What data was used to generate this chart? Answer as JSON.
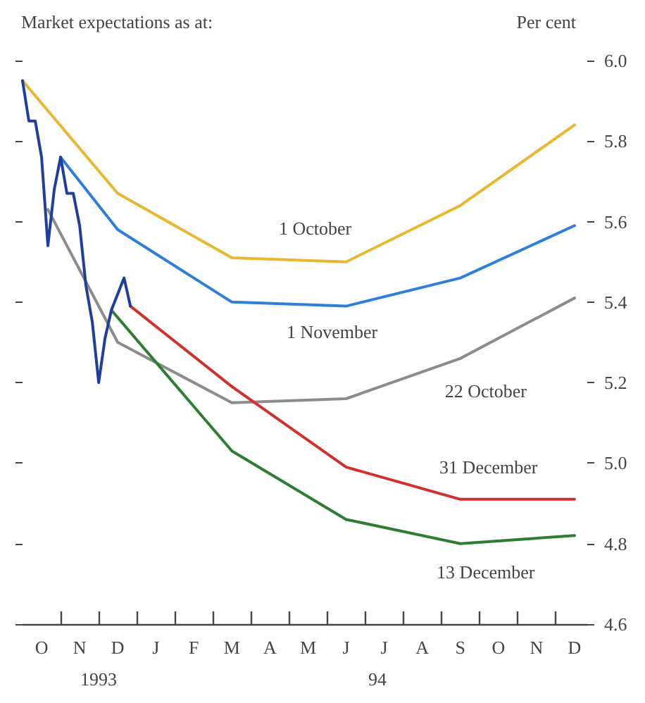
{
  "chart_data": {
    "type": "line",
    "title": "Market expectations as at:",
    "ylabel": "Per cent",
    "annotations": [
      "1993",
      "94"
    ],
    "categories": [
      null,
      null,
      null,
      "O",
      null,
      null,
      null,
      null,
      null,
      "N",
      null,
      null,
      null,
      null,
      null,
      "D",
      null,
      null,
      null,
      null,
      null,
      "J",
      null,
      null,
      null,
      null,
      null,
      "F",
      null,
      null,
      null,
      null,
      null,
      "M",
      null,
      null,
      null,
      null,
      null,
      "A",
      null,
      null,
      null,
      null,
      null,
      "M",
      null,
      null,
      null,
      null,
      null,
      "J",
      null,
      null,
      null,
      null,
      null,
      "J",
      null,
      null,
      null,
      null,
      null,
      "A",
      null,
      null,
      null,
      null,
      null,
      "S",
      null,
      null,
      null,
      null,
      null,
      "O",
      null,
      null,
      null,
      null,
      null,
      "N",
      null,
      null,
      null,
      null,
      null,
      "D",
      null,
      null
    ],
    "ylim": [
      4.6,
      6.0
    ],
    "yticks": [
      4.6,
      4.8,
      {
        "value": 5.0,
        "label": "5.0"
      },
      5.2,
      5.4,
      5.6,
      5.8,
      {
        "value": 6.0,
        "label": "6.0"
      }
    ],
    "grid": false,
    "legend": false,
    "marker": "none",
    "line_style": "solid",
    "series": [
      {
        "color": "#1f3f9e",
        "values": [
          5.95,
          5.85,
          5.85,
          5.76,
          5.54,
          5.68,
          5.76,
          5.67,
          5.67,
          5.59,
          5.44,
          5.35,
          5.2,
          5.31,
          5.38,
          5.42,
          5.46,
          5.39,
          null,
          null,
          null,
          null,
          null,
          null,
          null,
          null,
          null,
          null,
          null,
          null,
          null,
          null,
          null,
          null,
          null,
          null,
          null,
          null,
          null,
          null,
          null,
          null,
          null,
          null,
          null,
          null,
          null,
          null,
          null,
          null,
          null,
          null,
          null,
          null,
          null,
          null,
          null,
          null,
          null,
          null,
          null,
          null,
          null,
          null,
          null,
          null,
          null,
          null,
          null,
          null,
          null,
          null,
          null,
          null,
          null,
          null,
          null,
          null,
          null,
          null,
          null,
          null,
          null,
          null,
          null,
          null,
          null,
          null,
          null,
          null
        ]
      },
      {
        "name": "1 October",
        "color": "#e8b830",
        "values": [
          5.95,
          null,
          null,
          null,
          null,
          null,
          null,
          null,
          null,
          null,
          null,
          null,
          null,
          null,
          null,
          5.67,
          null,
          null,
          null,
          null,
          null,
          null,
          null,
          null,
          null,
          null,
          null,
          null,
          null,
          null,
          null,
          null,
          null,
          5.51,
          null,
          null,
          null,
          null,
          null,
          null,
          null,
          null,
          null,
          null,
          null,
          null,
          null,
          null,
          null,
          null,
          null,
          5.5,
          null,
          null,
          null,
          null,
          null,
          null,
          null,
          null,
          null,
          null,
          null,
          null,
          null,
          null,
          null,
          null,
          null,
          5.64,
          null,
          null,
          null,
          null,
          null,
          null,
          null,
          null,
          null,
          null,
          null,
          null,
          null,
          null,
          null,
          null,
          null,
          5.84,
          null,
          null
        ]
      },
      {
        "name": "1 November",
        "color": "#2f7fd6",
        "values": [
          null,
          null,
          null,
          null,
          null,
          null,
          5.76,
          null,
          null,
          null,
          null,
          null,
          null,
          null,
          null,
          5.58,
          null,
          null,
          null,
          null,
          null,
          null,
          null,
          null,
          null,
          null,
          null,
          null,
          null,
          null,
          null,
          null,
          null,
          5.4,
          null,
          null,
          null,
          null,
          null,
          null,
          null,
          null,
          null,
          null,
          null,
          null,
          null,
          null,
          null,
          null,
          null,
          5.39,
          null,
          null,
          null,
          null,
          null,
          null,
          null,
          null,
          null,
          null,
          null,
          null,
          null,
          null,
          null,
          null,
          null,
          5.46,
          null,
          null,
          null,
          null,
          null,
          null,
          null,
          null,
          null,
          null,
          null,
          null,
          null,
          null,
          null,
          null,
          null,
          5.59,
          null,
          null
        ]
      },
      {
        "name": "22 October",
        "color": "#8c8c8c",
        "values": [
          null,
          null,
          null,
          null,
          5.63,
          null,
          null,
          null,
          null,
          null,
          null,
          null,
          null,
          null,
          null,
          5.3,
          null,
          null,
          null,
          null,
          null,
          null,
          null,
          null,
          null,
          null,
          null,
          null,
          null,
          null,
          null,
          null,
          null,
          5.15,
          null,
          null,
          null,
          null,
          null,
          null,
          null,
          null,
          null,
          null,
          null,
          null,
          null,
          null,
          null,
          null,
          null,
          5.16,
          null,
          null,
          null,
          null,
          null,
          null,
          null,
          null,
          null,
          null,
          null,
          null,
          null,
          null,
          null,
          null,
          null,
          5.26,
          null,
          null,
          null,
          null,
          null,
          null,
          null,
          null,
          null,
          null,
          null,
          null,
          null,
          null,
          null,
          null,
          null,
          5.41,
          null,
          null
        ]
      },
      {
        "name": "31 December",
        "color": "#d0312d",
        "values": [
          null,
          null,
          null,
          null,
          null,
          null,
          null,
          null,
          null,
          null,
          null,
          null,
          null,
          null,
          null,
          null,
          null,
          5.39,
          null,
          null,
          null,
          null,
          null,
          null,
          null,
          null,
          null,
          null,
          null,
          null,
          null,
          null,
          null,
          5.19,
          null,
          null,
          null,
          null,
          null,
          null,
          null,
          null,
          null,
          null,
          null,
          null,
          null,
          null,
          null,
          null,
          null,
          4.99,
          null,
          null,
          null,
          null,
          null,
          null,
          null,
          null,
          null,
          null,
          null,
          null,
          null,
          null,
          null,
          null,
          null,
          4.91,
          null,
          null,
          null,
          null,
          null,
          null,
          null,
          null,
          null,
          null,
          null,
          null,
          null,
          null,
          null,
          null,
          null,
          4.91,
          null,
          null
        ]
      },
      {
        "name": "13 December",
        "color": "#2e7d32",
        "values": [
          null,
          null,
          null,
          null,
          null,
          null,
          null,
          null,
          null,
          null,
          null,
          null,
          null,
          null,
          5.38,
          null,
          null,
          null,
          null,
          null,
          null,
          null,
          null,
          null,
          null,
          null,
          null,
          null,
          null,
          null,
          null,
          null,
          null,
          5.03,
          null,
          null,
          null,
          null,
          null,
          null,
          null,
          null,
          null,
          null,
          null,
          null,
          null,
          null,
          null,
          null,
          null,
          4.86,
          null,
          null,
          null,
          null,
          null,
          null,
          null,
          null,
          null,
          null,
          null,
          null,
          null,
          null,
          null,
          null,
          null,
          4.8,
          null,
          null,
          null,
          null,
          null,
          null,
          null,
          null,
          null,
          null,
          null,
          null,
          null,
          null,
          null,
          null,
          null,
          4.82,
          null,
          null
        ]
      }
    ]
  }
}
